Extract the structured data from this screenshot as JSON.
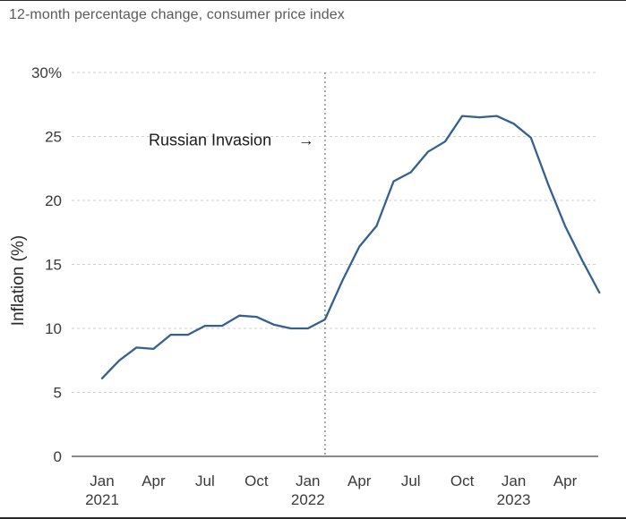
{
  "chart_data": {
    "type": "line",
    "subtitle": "12-month percentage change, consumer price index",
    "ylabel": "Inflation (%)",
    "ylim": [
      0,
      30
    ],
    "y_ticks": [
      0,
      5,
      10,
      15,
      20,
      25,
      30
    ],
    "y_tick_labels": [
      "0",
      "5",
      "10",
      "15",
      "20",
      "25",
      "30%"
    ],
    "grid": true,
    "x_ticks": [
      {
        "index": 0,
        "label": "Jan",
        "year": "2021"
      },
      {
        "index": 3,
        "label": "Apr",
        "year": ""
      },
      {
        "index": 6,
        "label": "Jul",
        "year": ""
      },
      {
        "index": 9,
        "label": "Oct",
        "year": ""
      },
      {
        "index": 12,
        "label": "Jan",
        "year": "2022"
      },
      {
        "index": 15,
        "label": "Apr",
        "year": ""
      },
      {
        "index": 18,
        "label": "Jul",
        "year": ""
      },
      {
        "index": 21,
        "label": "Oct",
        "year": ""
      },
      {
        "index": 24,
        "label": "Jan",
        "year": "2023"
      },
      {
        "index": 27,
        "label": "Apr",
        "year": ""
      }
    ],
    "x": [
      "2021-01",
      "2021-02",
      "2021-03",
      "2021-04",
      "2021-05",
      "2021-06",
      "2021-07",
      "2021-08",
      "2021-09",
      "2021-10",
      "2021-11",
      "2021-12",
      "2022-01",
      "2022-02",
      "2022-03",
      "2022-04",
      "2022-05",
      "2022-06",
      "2022-07",
      "2022-08",
      "2022-09",
      "2022-10",
      "2022-11",
      "2022-12",
      "2023-01",
      "2023-02",
      "2023-03",
      "2023-04",
      "2023-05",
      "2023-06"
    ],
    "series": [
      {
        "color": "#35608f",
        "values": [
          6.1,
          7.5,
          8.5,
          8.4,
          9.5,
          9.5,
          10.2,
          10.2,
          11.0,
          10.9,
          10.3,
          10.0,
          10.0,
          10.7,
          13.7,
          16.4,
          18.0,
          21.5,
          22.2,
          23.8,
          24.6,
          26.6,
          26.5,
          26.6,
          26.0,
          24.9,
          21.3,
          18.0,
          15.3,
          12.8
        ]
      }
    ],
    "annotation": {
      "text": "Russian Invasion",
      "arrow": "→",
      "at": "2022-02",
      "y": 25
    }
  }
}
